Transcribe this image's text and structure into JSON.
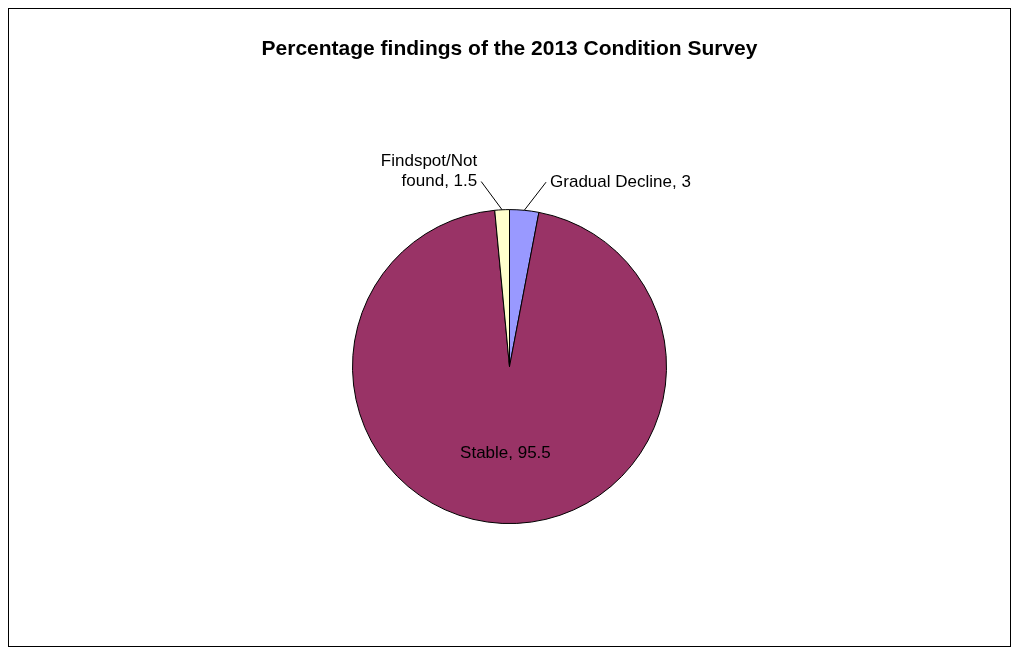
{
  "chart_data": {
    "type": "pie",
    "title": "Percentage findings of the 2013 Condition Survey",
    "categories": [
      "Gradual Decline",
      "Stable",
      "Findspot/Not found"
    ],
    "values": [
      3,
      95.5,
      1.5
    ],
    "value_labels": [
      ", 3",
      ", 95.5",
      ", 1.5"
    ],
    "colors": [
      "#9999ff",
      "#993366",
      "#ffffcc"
    ],
    "legend": false
  }
}
